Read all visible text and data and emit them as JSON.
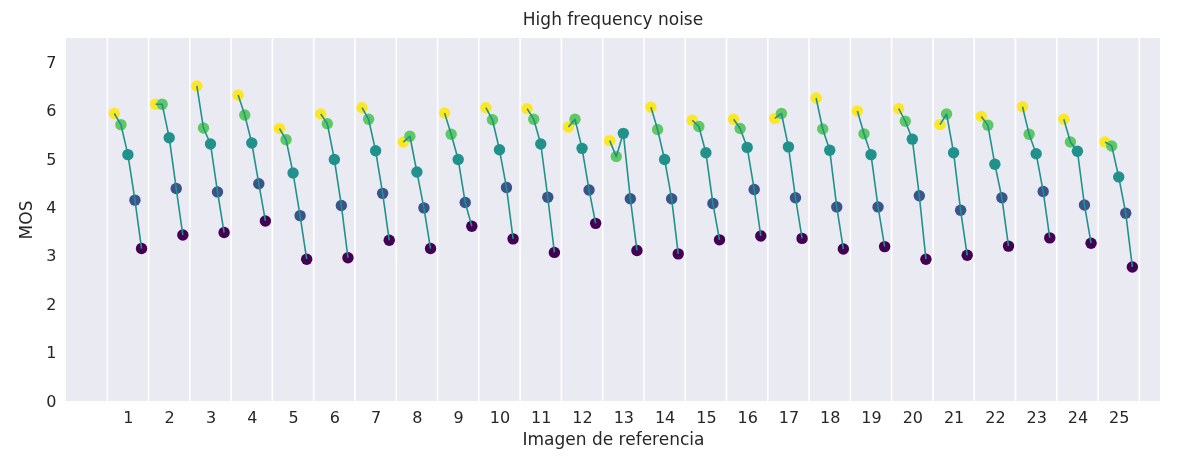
{
  "chart_data": {
    "type": "scatter",
    "title": "High frequency noise",
    "xlabel": "Imagen de referencia",
    "ylabel": "MOS",
    "xlim": [
      -0.5,
      26
    ],
    "xticks": [
      1,
      2,
      3,
      4,
      5,
      6,
      7,
      8,
      9,
      10,
      11,
      12,
      13,
      14,
      15,
      16,
      17,
      18,
      19,
      20,
      21,
      22,
      23,
      24,
      25
    ],
    "ylim": [
      0,
      7.5
    ],
    "yticks": [
      0,
      1,
      2,
      3,
      4,
      5,
      6,
      7
    ],
    "ref_lines": [
      {
        "axis": "x",
        "value": 0.5,
        "color": "#ffffff"
      },
      {
        "axis": "x",
        "value": 1.5,
        "color": "#ffffff"
      },
      {
        "axis": "x",
        "value": 2.5,
        "color": "#ffffff"
      },
      {
        "axis": "x",
        "value": 3.5,
        "color": "#ffffff"
      },
      {
        "axis": "x",
        "value": 4.5,
        "color": "#ffffff"
      },
      {
        "axis": "x",
        "value": 5.5,
        "color": "#ffffff"
      },
      {
        "axis": "x",
        "value": 6.5,
        "color": "#ffffff"
      },
      {
        "axis": "x",
        "value": 7.5,
        "color": "#ffffff"
      },
      {
        "axis": "x",
        "value": 8.5,
        "color": "#ffffff"
      },
      {
        "axis": "x",
        "value": 9.5,
        "color": "#ffffff"
      },
      {
        "axis": "x",
        "value": 10.5,
        "color": "#ffffff"
      },
      {
        "axis": "x",
        "value": 11.5,
        "color": "#ffffff"
      },
      {
        "axis": "x",
        "value": 12.5,
        "color": "#ffffff"
      },
      {
        "axis": "x",
        "value": 13.5,
        "color": "#ffffff"
      },
      {
        "axis": "x",
        "value": 14.5,
        "color": "#ffffff"
      },
      {
        "axis": "x",
        "value": 15.5,
        "color": "#ffffff"
      },
      {
        "axis": "x",
        "value": 16.5,
        "color": "#ffffff"
      },
      {
        "axis": "x",
        "value": 17.5,
        "color": "#ffffff"
      },
      {
        "axis": "x",
        "value": 18.5,
        "color": "#ffffff"
      },
      {
        "axis": "x",
        "value": 19.5,
        "color": "#ffffff"
      },
      {
        "axis": "x",
        "value": 20.5,
        "color": "#ffffff"
      },
      {
        "axis": "x",
        "value": 21.5,
        "color": "#ffffff"
      },
      {
        "axis": "x",
        "value": 22.5,
        "color": "#ffffff"
      },
      {
        "axis": "x",
        "value": 23.5,
        "color": "#ffffff"
      },
      {
        "axis": "x",
        "value": 24.5,
        "color": "#ffffff"
      },
      {
        "axis": "x",
        "value": 25.5,
        "color": "#ffffff"
      }
    ],
    "marker": "circle",
    "series": [
      {
        "color": "#fde725",
        "x": [
          0.67,
          1.67,
          2.67,
          3.67,
          4.67,
          5.67,
          6.67,
          7.67,
          8.67,
          9.67,
          10.67,
          11.67,
          12.67,
          13.67,
          14.67,
          15.67,
          16.67,
          17.67,
          18.67,
          19.67,
          20.67,
          21.67,
          22.67,
          23.67,
          24.67
        ],
        "values": [
          5.94,
          6.13,
          6.51,
          6.32,
          5.63,
          5.93,
          6.06,
          5.35,
          5.95,
          6.06,
          6.04,
          5.66,
          5.38,
          6.07,
          5.8,
          5.82,
          5.84,
          6.26,
          5.99,
          6.04,
          5.71,
          5.88,
          6.08,
          5.82,
          5.35
        ]
      },
      {
        "color": "#5ec962",
        "x": [
          0.83,
          1.83,
          2.83,
          3.83,
          4.83,
          5.83,
          6.83,
          7.83,
          8.83,
          9.83,
          10.83,
          11.83,
          12.83,
          13.83,
          14.83,
          15.83,
          16.83,
          17.83,
          18.83,
          19.83,
          20.83,
          21.83,
          22.83,
          23.83,
          24.83
        ],
        "values": [
          5.71,
          6.13,
          5.64,
          5.91,
          5.4,
          5.73,
          5.82,
          5.47,
          5.51,
          5.81,
          5.82,
          5.82,
          5.05,
          5.61,
          5.67,
          5.63,
          5.94,
          5.62,
          5.52,
          5.78,
          5.93,
          5.7,
          5.51,
          5.35,
          5.27
        ]
      },
      {
        "color": "#21918c",
        "x": [
          1,
          2,
          3,
          4,
          5,
          6,
          7,
          8,
          9,
          10,
          11,
          12,
          13,
          14,
          15,
          16,
          17,
          18,
          19,
          20,
          21,
          22,
          23,
          24,
          25
        ],
        "values": [
          5.09,
          5.44,
          5.31,
          5.33,
          4.71,
          4.99,
          5.17,
          4.73,
          4.99,
          5.19,
          5.31,
          5.22,
          5.53,
          4.99,
          5.13,
          5.24,
          5.25,
          5.18,
          5.09,
          5.41,
          5.13,
          4.89,
          5.11,
          5.16,
          4.63
        ]
      },
      {
        "color": "#3b528b",
        "x": [
          1.17,
          2.17,
          3.17,
          4.17,
          5.17,
          6.17,
          7.17,
          8.17,
          9.17,
          10.17,
          11.17,
          12.17,
          13.17,
          14.17,
          15.17,
          16.17,
          17.17,
          18.17,
          19.17,
          20.17,
          21.17,
          22.17,
          23.17,
          24.17,
          25.17
        ],
        "values": [
          4.15,
          4.39,
          4.32,
          4.49,
          3.83,
          4.04,
          4.29,
          3.99,
          4.1,
          4.41,
          4.21,
          4.36,
          4.18,
          4.18,
          4.08,
          4.37,
          4.2,
          4.01,
          4.01,
          4.24,
          3.94,
          4.2,
          4.33,
          4.05,
          3.88
        ]
      },
      {
        "color": "#440154",
        "x": [
          1.33,
          2.33,
          3.33,
          4.33,
          5.33,
          6.33,
          7.33,
          8.33,
          9.33,
          10.33,
          11.33,
          12.33,
          13.33,
          14.33,
          15.33,
          16.33,
          17.33,
          18.33,
          19.33,
          20.33,
          21.33,
          22.33,
          23.33,
          24.33,
          25.33
        ],
        "values": [
          3.15,
          3.43,
          3.48,
          3.72,
          2.93,
          2.96,
          3.32,
          3.15,
          3.61,
          3.35,
          3.07,
          3.67,
          3.11,
          3.04,
          3.33,
          3.41,
          3.36,
          3.14,
          3.19,
          2.93,
          3.01,
          3.2,
          3.37,
          3.26,
          2.77
        ]
      },
      {
        "type": "line",
        "color": "#21918c",
        "line_style": "solid",
        "marker": "none",
        "x": [
          0.67,
          0.83,
          1,
          1.17,
          1.33,
          1.5,
          1.67,
          1.83,
          2,
          2.17,
          2.33,
          2.5,
          2.67,
          2.83,
          3,
          3.17,
          3.33,
          3.5,
          3.67,
          3.83,
          4,
          4.17,
          4.33,
          4.5,
          4.67,
          4.83,
          5,
          5.17,
          5.33,
          5.5,
          5.67,
          5.83,
          6,
          6.17,
          6.33,
          6.5,
          6.67,
          6.83,
          7,
          7.17,
          7.33,
          7.5,
          7.67,
          7.83,
          8,
          8.17,
          8.33,
          8.5,
          8.67,
          8.83,
          9,
          9.17,
          9.33,
          9.5,
          9.67,
          9.83,
          10,
          10.17,
          10.33,
          10.5,
          10.67,
          10.83,
          11,
          11.17,
          11.33,
          11.5,
          11.67,
          11.83,
          12,
          12.17,
          12.33,
          12.5,
          12.67,
          12.83,
          13,
          13.17,
          13.33,
          13.5,
          13.67,
          13.83,
          14,
          14.17,
          14.33,
          14.5,
          14.67,
          14.83,
          15,
          15.17,
          15.33,
          15.5,
          15.67,
          15.83,
          16,
          16.17,
          16.33,
          16.5,
          16.67,
          16.83,
          17,
          17.17,
          17.33,
          17.5,
          17.67,
          17.83,
          18,
          18.17,
          18.33,
          18.5,
          18.67,
          18.83,
          19,
          19.17,
          19.33,
          19.5,
          19.67,
          19.83,
          20,
          20.17,
          20.33,
          20.5,
          20.67,
          20.83,
          21,
          21.17,
          21.33,
          21.5,
          21.67,
          21.83,
          22,
          22.17,
          22.33,
          22.5,
          22.67,
          22.83,
          23,
          23.17,
          23.33,
          23.5,
          23.67,
          23.83,
          24,
          24.17,
          24.33,
          24.5,
          24.67,
          24.83,
          25,
          25.17,
          25.33
        ],
        "values": [
          5.94,
          5.71,
          5.09,
          4.15,
          3.15,
          null,
          6.13,
          6.13,
          5.44,
          4.39,
          3.43,
          null,
          6.51,
          5.64,
          5.31,
          4.32,
          3.48,
          null,
          6.32,
          5.91,
          5.33,
          4.49,
          3.72,
          null,
          5.63,
          5.4,
          4.71,
          3.83,
          2.93,
          null,
          5.93,
          5.73,
          4.99,
          4.04,
          2.96,
          null,
          6.06,
          5.82,
          5.17,
          4.29,
          3.32,
          null,
          5.35,
          5.47,
          4.73,
          3.99,
          3.15,
          null,
          5.95,
          5.51,
          4.99,
          4.1,
          3.61,
          null,
          6.06,
          5.81,
          5.19,
          4.41,
          3.35,
          null,
          6.04,
          5.82,
          5.31,
          4.21,
          3.07,
          null,
          5.66,
          5.82,
          5.22,
          4.36,
          3.67,
          null,
          5.38,
          5.05,
          5.53,
          4.18,
          3.11,
          null,
          6.07,
          5.61,
          4.99,
          4.18,
          3.04,
          null,
          5.8,
          5.67,
          5.13,
          4.08,
          3.33,
          null,
          5.82,
          5.63,
          5.24,
          4.37,
          3.41,
          null,
          5.84,
          5.94,
          5.25,
          4.2,
          3.36,
          null,
          6.26,
          5.62,
          5.18,
          4.01,
          3.14,
          null,
          5.99,
          5.52,
          5.09,
          4.01,
          3.19,
          null,
          6.04,
          5.78,
          5.41,
          4.24,
          2.93,
          null,
          5.71,
          5.93,
          5.13,
          3.94,
          3.01,
          null,
          5.88,
          5.7,
          4.89,
          4.2,
          3.2,
          null,
          6.08,
          5.51,
          5.11,
          4.33,
          3.37,
          null,
          5.82,
          5.35,
          5.16,
          4.05,
          3.26,
          null,
          5.35,
          5.27,
          4.63,
          3.88,
          2.77
        ]
      }
    ]
  }
}
